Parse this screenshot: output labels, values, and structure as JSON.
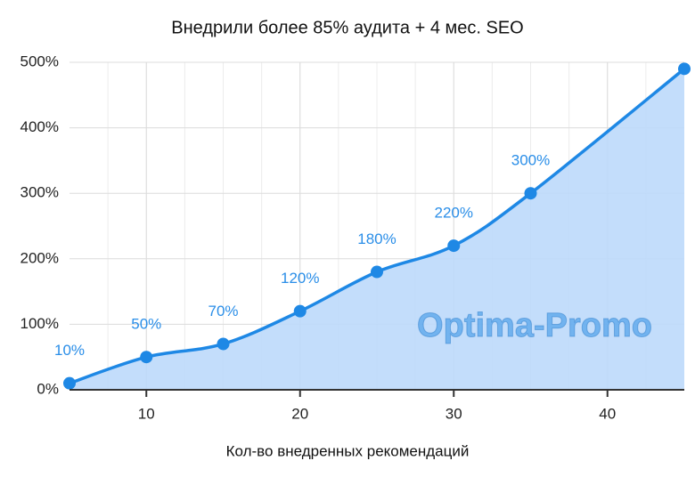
{
  "chart_data": {
    "type": "area",
    "subtitle": "Внедрили более 85% аудита + 4 мес. SEO",
    "x_label": "Кол-во внедренных рекомендаций",
    "watermark": "Optima-Promo",
    "x": [
      5,
      10,
      15,
      20,
      25,
      30,
      35,
      45
    ],
    "series": [
      {
        "color": "#1e88e5",
        "fill": "#bcd9fb",
        "values": [
          10,
          50,
          70,
          120,
          180,
          220,
          300,
          490
        ],
        "value_labels": [
          "10%",
          "50%",
          "70%",
          "120%",
          "180%",
          "220%",
          "300%",
          null
        ]
      }
    ],
    "xlim": [
      5,
      45
    ],
    "xticks": [
      10,
      20,
      30,
      40
    ],
    "ylim": [
      0,
      500
    ],
    "yticks": [
      {
        "value": 0,
        "label": "0%"
      },
      {
        "value": 100,
        "label": "100%"
      },
      {
        "value": 200,
        "label": "200%"
      },
      {
        "value": 300,
        "label": "300%"
      },
      {
        "value": 400,
        "label": "400%"
      },
      {
        "value": 500,
        "label": "500%"
      }
    ],
    "grid": true
  }
}
